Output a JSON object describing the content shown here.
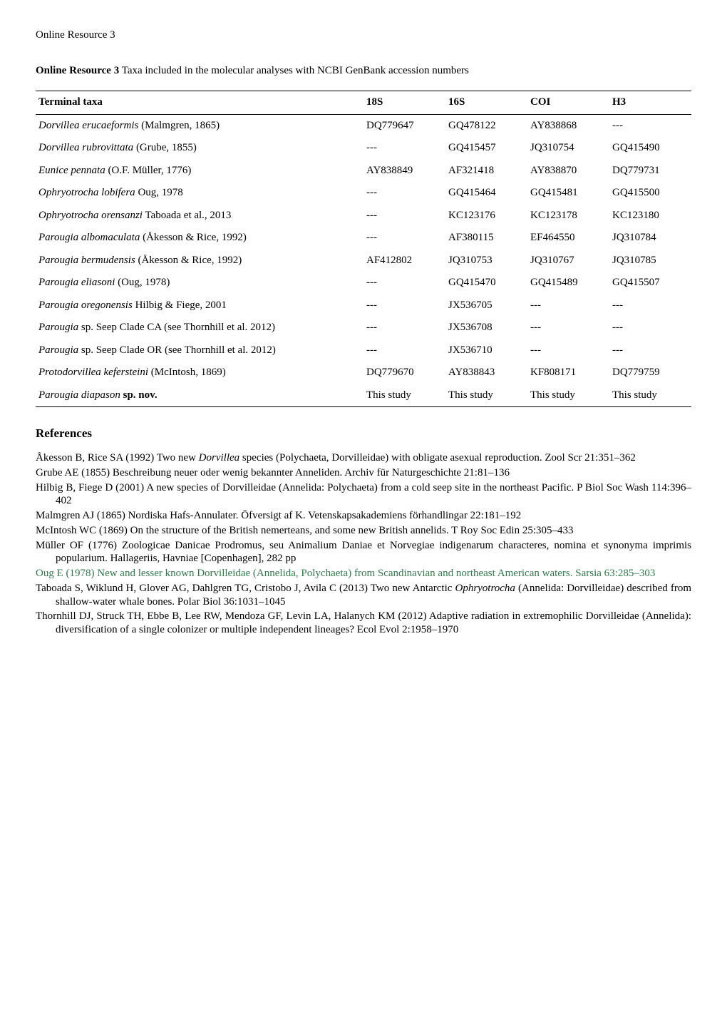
{
  "header": "Online Resource 3",
  "caption_bold": "Online Resource 3",
  "caption_rest": " Taxa included in the molecular analyses with NCBI GenBank accession numbers",
  "table": {
    "columns": [
      "Terminal taxa",
      "18S",
      "16S",
      "COI",
      "H3"
    ],
    "rows": [
      {
        "taxon_italic": "Dorvillea erucaeformis",
        "taxon_rest": " (Malmgren, 1865)",
        "c18s": "DQ779647",
        "c16s": "GQ478122",
        "coi": "AY838868",
        "h3": "---"
      },
      {
        "taxon_italic": "Dorvillea rubrovittata",
        "taxon_rest": " (Grube, 1855)",
        "c18s": "---",
        "c16s": "GQ415457",
        "coi": "JQ310754",
        "h3": "GQ415490"
      },
      {
        "taxon_italic": "Eunice pennata",
        "taxon_rest": " (O.F. Müller, 1776)",
        "c18s": "AY838849",
        "c16s": "AF321418",
        "coi": "AY838870",
        "h3": "DQ779731"
      },
      {
        "taxon_italic": "Ophryotrocha lobifera",
        "taxon_rest": " Oug, 1978",
        "c18s": "---",
        "c16s": "GQ415464",
        "coi": "GQ415481",
        "h3": "GQ415500"
      },
      {
        "taxon_italic": "Ophryotrocha orensanzi",
        "taxon_rest": " Taboada et al., 2013",
        "c18s": "---",
        "c16s": "KC123176",
        "coi": "KC123178",
        "h3": "KC123180"
      },
      {
        "taxon_italic": "Parougia albomaculata",
        "taxon_rest": " (Åkesson & Rice, 1992)",
        "c18s": "---",
        "c16s": "AF380115",
        "coi": "EF464550",
        "h3": "JQ310784"
      },
      {
        "taxon_italic": "Parougia bermudensis",
        "taxon_rest": " (Åkesson & Rice, 1992)",
        "c18s": "AF412802",
        "c16s": "JQ310753",
        "coi": "JQ310767",
        "h3": "JQ310785"
      },
      {
        "taxon_italic": "Parougia eliasoni",
        "taxon_rest": " (Oug, 1978)",
        "c18s": "---",
        "c16s": "GQ415470",
        "coi": "GQ415489",
        "h3": "GQ415507"
      },
      {
        "taxon_italic": "Parougia oregonensis",
        "taxon_rest": " Hilbig & Fiege, 2001",
        "c18s": "---",
        "c16s": "JX536705",
        "coi": "---",
        "h3": "---"
      },
      {
        "taxon_italic": "Parougia",
        "taxon_rest": " sp. Seep Clade CA (see Thornhill et al. 2012)",
        "c18s": "---",
        "c16s": "JX536708",
        "coi": "---",
        "h3": "---"
      },
      {
        "taxon_italic": "Parougia",
        "taxon_rest": " sp. Seep Clade OR (see Thornhill et al. 2012)",
        "c18s": "---",
        "c16s": "JX536710",
        "coi": "---",
        "h3": "---"
      },
      {
        "taxon_italic": "Protodorvillea kefersteini",
        "taxon_rest": " (McIntosh, 1869)",
        "c18s": "DQ779670",
        "c16s": "AY838843",
        "coi": "KF808171",
        "h3": "DQ779759"
      },
      {
        "taxon_italic": "Parougia diapason",
        "taxon_rest_bold": " sp. nov.",
        "c18s": "This study",
        "c16s": "This study",
        "coi": "This study",
        "h3": "This study"
      }
    ]
  },
  "refs_heading": "References",
  "references": [
    {
      "html": "Åkesson B, Rice SA (1992) Two new <span class='ital'>Dorvillea</span> species (Polychaeta, Dorvilleidae) with obligate asexual reproduction. Zool Scr 21:351–362"
    },
    {
      "html": "Grube AE (1855) Beschreibung neuer oder wenig bekannter Anneliden. Archiv für Naturgeschichte 21:81–136"
    },
    {
      "html": "Hilbig B, Fiege D (2001) A new species of Dorvilleidae (Annelida: Polychaeta) from a cold seep site in the northeast Pacific. P Biol Soc Wash 114:396–402"
    },
    {
      "html": "Malmgren AJ (1865) Nordiska Hafs-Annulater. Öfversigt af K. Vetenskapsakademiens förhandlingar 22:181–192"
    },
    {
      "html": "McIntosh WC (1869) On the structure of the British nemerteans, and some new British annelids. T Roy Soc Edin 25:305–433"
    },
    {
      "html": "Müller OF (1776) Zoologicae Danicae Prodromus, seu Animalium Daniae et Norvegiae indigenarum characteres, nomina et synonyma imprimis popularium. Hallageriis, Havniae [Copenhagen], 282 pp"
    },
    {
      "html": "Oug E (1978) New and lesser known Dorvilleidae (Annelida, Polychaeta) from Scandinavian and northeast American waters. Sarsia 63:285–303",
      "highlight": true
    },
    {
      "html": "Taboada S, Wiklund H, Glover AG, Dahlgren TG, Cristobo J, Avila C (2013) Two new Antarctic <span class='ital'>Ophryotrocha</span> (Annelida: Dorvilleidae) described from shallow-water whale bones. Polar Biol 36:1031–1045"
    },
    {
      "html": "Thornhill DJ, Struck TH, Ebbe B, Lee RW, Mendoza GF, Levin LA, Halanych KM (2012) Adaptive radiation in extremophilic Dorvilleidae (Annelida): diversification of a single colonizer or multiple independent lineages? Ecol Evol 2:1958–1970"
    }
  ]
}
